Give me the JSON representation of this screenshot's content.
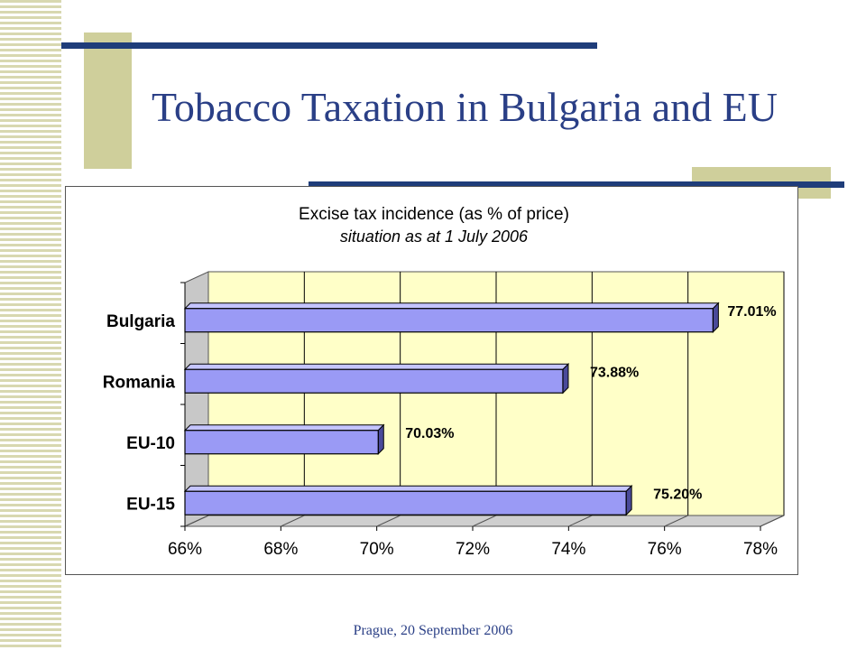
{
  "slide": {
    "title": "Tobacco Taxation in Bulgaria and EU",
    "footer": "Prague, 20 September 2006"
  },
  "colors": {
    "title": "#2a3f86",
    "deco_olive": "#cfcf9b",
    "deco_navy": "#1f3d7a",
    "bar_face": "#9a9af5",
    "plot_bg": "#ffffc8"
  },
  "chart_data": {
    "type": "bar",
    "orientation": "horizontal",
    "title": "Excise tax incidence (as % of price)",
    "subtitle": "situation as at 1 July 2006",
    "categories": [
      "Bulgaria",
      "Romania",
      "EU-10",
      "EU-15"
    ],
    "values": [
      77.01,
      73.88,
      70.03,
      75.2
    ],
    "data_labels": [
      "77.01%",
      "73.88%",
      "70.03%",
      "75.20%"
    ],
    "xlim": [
      66,
      78
    ],
    "xticks": [
      "66%",
      "68%",
      "70%",
      "72%",
      "74%",
      "76%",
      "78%"
    ],
    "xtick_values": [
      66,
      68,
      70,
      72,
      74,
      76,
      78
    ],
    "grid": true,
    "legend": "none",
    "xlabel": "",
    "ylabel": ""
  }
}
